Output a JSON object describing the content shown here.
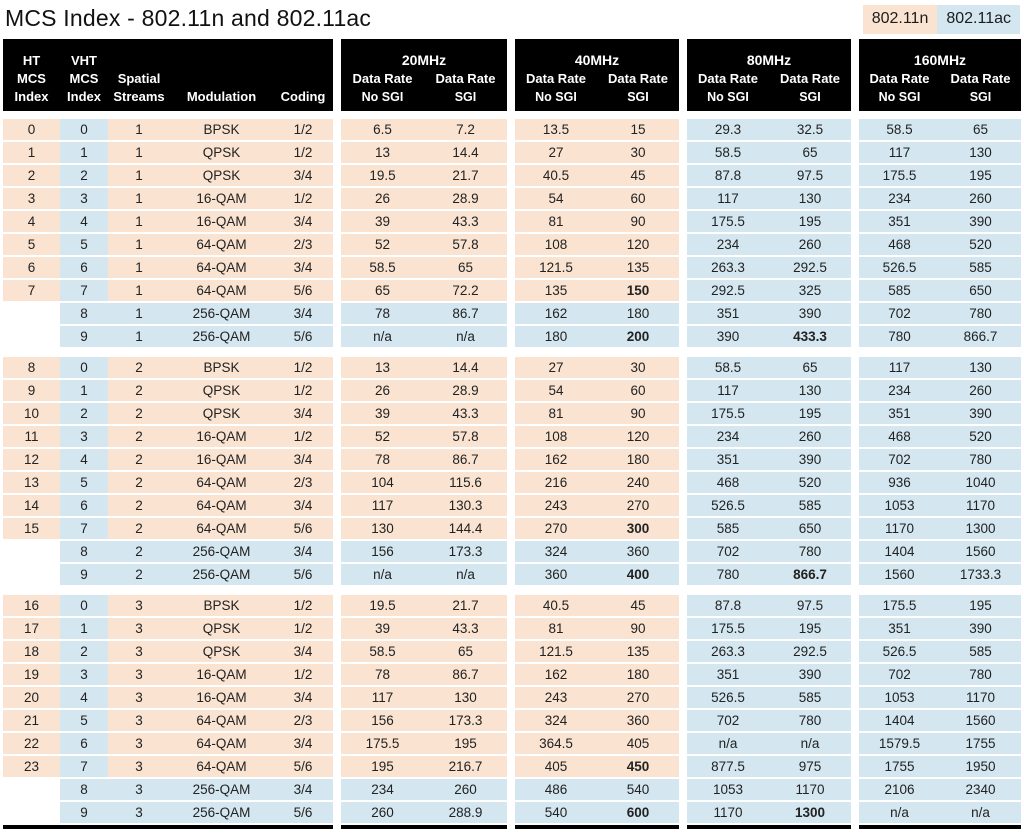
{
  "title": "MCS Index - 802.11n and 802.11ac",
  "legend": {
    "n": "802.11n",
    "ac": "802.11ac"
  },
  "colors": {
    "peach": "#fae4d1",
    "blue": "#d4e7f0",
    "header_bg": "#000000",
    "header_text": "#ffffff"
  },
  "header": {
    "left_columns": [
      {
        "lines": [
          "HT",
          "MCS",
          "Index"
        ]
      },
      {
        "lines": [
          "VHT",
          "MCS",
          "Index"
        ]
      },
      {
        "lines": [
          "Spatial",
          "Streams"
        ]
      },
      {
        "lines": [
          "Modulation"
        ]
      },
      {
        "lines": [
          "Coding"
        ]
      }
    ],
    "bands": [
      {
        "label": "20MHz",
        "top": [
          "Data Rate",
          "Data Rate"
        ],
        "bottom": [
          "No SGI",
          "SGI"
        ]
      },
      {
        "label": "40MHz",
        "top": [
          "Data Rate",
          "Data Rate"
        ],
        "bottom": [
          "No SGI",
          "SGI"
        ]
      },
      {
        "label": "80MHz",
        "top": [
          "Data Rate",
          "Data Rate"
        ],
        "bottom": [
          "No SGI",
          "SGI"
        ]
      },
      {
        "label": "160MHz",
        "top": [
          "Data Rate",
          "Data Rate"
        ],
        "bottom": [
          "No SGI",
          "SGI"
        ]
      }
    ]
  },
  "chart_data": {
    "type": "table",
    "title": "MCS Index - 802.11n and 802.11ac",
    "columns": [
      "HT MCS Index",
      "VHT MCS Index",
      "Spatial Streams",
      "Modulation",
      "Coding",
      "20MHz Data Rate No SGI",
      "20MHz Data Rate SGI",
      "40MHz Data Rate No SGI",
      "40MHz Data Rate SGI",
      "80MHz Data Rate No SGI",
      "80MHz Data Rate SGI",
      "160MHz Data Rate No SGI",
      "160MHz Data Rate SGI"
    ],
    "legend_meaning": {
      "peach": "802.11n",
      "blue": "802.11ac"
    },
    "sections": [
      {
        "spatial_streams": 1,
        "rows": [
          {
            "cells": [
              "0",
              "0",
              "1",
              "BPSK",
              "1/2",
              "6.5",
              "7.2",
              "13.5",
              "15",
              "29.3",
              "32.5",
              "58.5",
              "65"
            ],
            "bold": []
          },
          {
            "cells": [
              "1",
              "1",
              "1",
              "QPSK",
              "1/2",
              "13",
              "14.4",
              "27",
              "30",
              "58.5",
              "65",
              "117",
              "130"
            ],
            "bold": []
          },
          {
            "cells": [
              "2",
              "2",
              "1",
              "QPSK",
              "3/4",
              "19.5",
              "21.7",
              "40.5",
              "45",
              "87.8",
              "97.5",
              "175.5",
              "195"
            ],
            "bold": []
          },
          {
            "cells": [
              "3",
              "3",
              "1",
              "16-QAM",
              "1/2",
              "26",
              "28.9",
              "54",
              "60",
              "117",
              "130",
              "234",
              "260"
            ],
            "bold": []
          },
          {
            "cells": [
              "4",
              "4",
              "1",
              "16-QAM",
              "3/4",
              "39",
              "43.3",
              "81",
              "90",
              "175.5",
              "195",
              "351",
              "390"
            ],
            "bold": []
          },
          {
            "cells": [
              "5",
              "5",
              "1",
              "64-QAM",
              "2/3",
              "52",
              "57.8",
              "108",
              "120",
              "234",
              "260",
              "468",
              "520"
            ],
            "bold": []
          },
          {
            "cells": [
              "6",
              "6",
              "1",
              "64-QAM",
              "3/4",
              "58.5",
              "65",
              "121.5",
              "135",
              "263.3",
              "292.5",
              "526.5",
              "585"
            ],
            "bold": []
          },
          {
            "cells": [
              "7",
              "7",
              "1",
              "64-QAM",
              "5/6",
              "65",
              "72.2",
              "135",
              "150",
              "292.5",
              "325",
              "585",
              "650"
            ],
            "bold": [
              8
            ]
          },
          {
            "cells": [
              "",
              "8",
              "1",
              "256-QAM",
              "3/4",
              "78",
              "86.7",
              "162",
              "180",
              "351",
              "390",
              "702",
              "780"
            ],
            "bold": []
          },
          {
            "cells": [
              "",
              "9",
              "1",
              "256-QAM",
              "5/6",
              "n/a",
              "n/a",
              "180",
              "200",
              "390",
              "433.3",
              "780",
              "866.7"
            ],
            "bold": [
              8,
              10
            ]
          }
        ]
      },
      {
        "spatial_streams": 2,
        "rows": [
          {
            "cells": [
              "8",
              "0",
              "2",
              "BPSK",
              "1/2",
              "13",
              "14.4",
              "27",
              "30",
              "58.5",
              "65",
              "117",
              "130"
            ],
            "bold": []
          },
          {
            "cells": [
              "9",
              "1",
              "2",
              "QPSK",
              "1/2",
              "26",
              "28.9",
              "54",
              "60",
              "117",
              "130",
              "234",
              "260"
            ],
            "bold": []
          },
          {
            "cells": [
              "10",
              "2",
              "2",
              "QPSK",
              "3/4",
              "39",
              "43.3",
              "81",
              "90",
              "175.5",
              "195",
              "351",
              "390"
            ],
            "bold": []
          },
          {
            "cells": [
              "11",
              "3",
              "2",
              "16-QAM",
              "1/2",
              "52",
              "57.8",
              "108",
              "120",
              "234",
              "260",
              "468",
              "520"
            ],
            "bold": []
          },
          {
            "cells": [
              "12",
              "4",
              "2",
              "16-QAM",
              "3/4",
              "78",
              "86.7",
              "162",
              "180",
              "351",
              "390",
              "702",
              "780"
            ],
            "bold": []
          },
          {
            "cells": [
              "13",
              "5",
              "2",
              "64-QAM",
              "2/3",
              "104",
              "115.6",
              "216",
              "240",
              "468",
              "520",
              "936",
              "1040"
            ],
            "bold": []
          },
          {
            "cells": [
              "14",
              "6",
              "2",
              "64-QAM",
              "3/4",
              "117",
              "130.3",
              "243",
              "270",
              "526.5",
              "585",
              "1053",
              "1170"
            ],
            "bold": []
          },
          {
            "cells": [
              "15",
              "7",
              "2",
              "64-QAM",
              "5/6",
              "130",
              "144.4",
              "270",
              "300",
              "585",
              "650",
              "1170",
              "1300"
            ],
            "bold": [
              8
            ]
          },
          {
            "cells": [
              "",
              "8",
              "2",
              "256-QAM",
              "3/4",
              "156",
              "173.3",
              "324",
              "360",
              "702",
              "780",
              "1404",
              "1560"
            ],
            "bold": []
          },
          {
            "cells": [
              "",
              "9",
              "2",
              "256-QAM",
              "5/6",
              "n/a",
              "n/a",
              "360",
              "400",
              "780",
              "866.7",
              "1560",
              "1733.3"
            ],
            "bold": [
              8,
              10
            ]
          }
        ]
      },
      {
        "spatial_streams": 3,
        "rows": [
          {
            "cells": [
              "16",
              "0",
              "3",
              "BPSK",
              "1/2",
              "19.5",
              "21.7",
              "40.5",
              "45",
              "87.8",
              "97.5",
              "175.5",
              "195"
            ],
            "bold": []
          },
          {
            "cells": [
              "17",
              "1",
              "3",
              "QPSK",
              "1/2",
              "39",
              "43.3",
              "81",
              "90",
              "175.5",
              "195",
              "351",
              "390"
            ],
            "bold": []
          },
          {
            "cells": [
              "18",
              "2",
              "3",
              "QPSK",
              "3/4",
              "58.5",
              "65",
              "121.5",
              "135",
              "263.3",
              "292.5",
              "526.5",
              "585"
            ],
            "bold": []
          },
          {
            "cells": [
              "19",
              "3",
              "3",
              "16-QAM",
              "1/2",
              "78",
              "86.7",
              "162",
              "180",
              "351",
              "390",
              "702",
              "780"
            ],
            "bold": []
          },
          {
            "cells": [
              "20",
              "4",
              "3",
              "16-QAM",
              "3/4",
              "117",
              "130",
              "243",
              "270",
              "526.5",
              "585",
              "1053",
              "1170"
            ],
            "bold": []
          },
          {
            "cells": [
              "21",
              "5",
              "3",
              "64-QAM",
              "2/3",
              "156",
              "173.3",
              "324",
              "360",
              "702",
              "780",
              "1404",
              "1560"
            ],
            "bold": []
          },
          {
            "cells": [
              "22",
              "6",
              "3",
              "64-QAM",
              "3/4",
              "175.5",
              "195",
              "364.5",
              "405",
              "n/a",
              "n/a",
              "1579.5",
              "1755"
            ],
            "bold": []
          },
          {
            "cells": [
              "23",
              "7",
              "3",
              "64-QAM",
              "5/6",
              "195",
              "216.7",
              "405",
              "450",
              "877.5",
              "975",
              "1755",
              "1950"
            ],
            "bold": [
              8
            ]
          },
          {
            "cells": [
              "",
              "8",
              "3",
              "256-QAM",
              "3/4",
              "234",
              "260",
              "486",
              "540",
              "1053",
              "1170",
              "2106",
              "2340"
            ],
            "bold": []
          },
          {
            "cells": [
              "",
              "9",
              "3",
              "256-QAM",
              "5/6",
              "260",
              "288.9",
              "540",
              "600",
              "1170",
              "1300",
              "n/a",
              "n/a"
            ],
            "bold": [
              8,
              10
            ]
          }
        ]
      }
    ]
  }
}
